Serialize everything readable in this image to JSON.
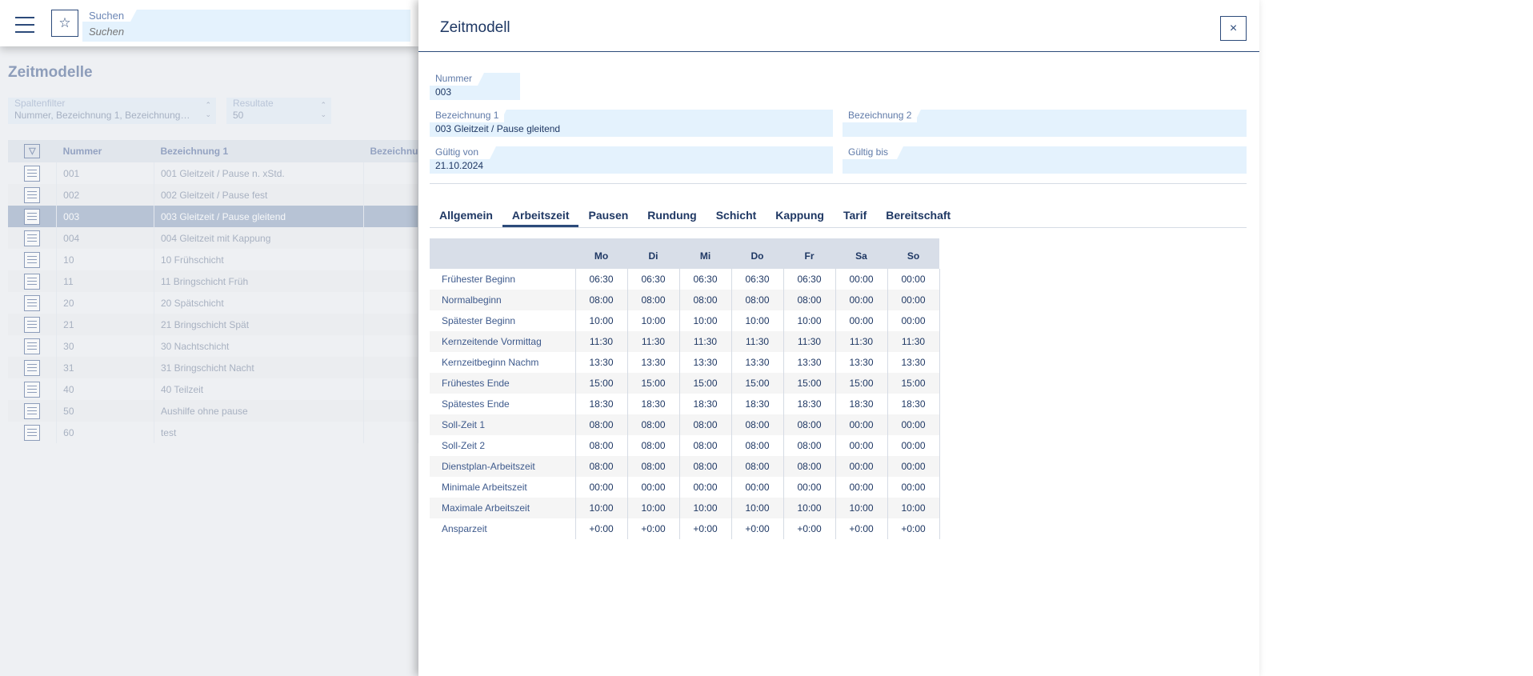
{
  "topbar": {
    "search_label": "Suchen",
    "search_placeholder": "Suchen"
  },
  "list": {
    "title": "Zeitmodelle",
    "column_filter": {
      "label": "Spaltenfilter",
      "value": "Nummer, Bezeichnung 1, Bezeichnung…"
    },
    "results": {
      "label": "Resultate",
      "value": "50"
    },
    "headers": [
      "Nummer",
      "Bezeichnung 1",
      "Bezeichnu"
    ],
    "rows": [
      {
        "nr": "001",
        "bez": "001 Gleitzeit / Pause n. xStd."
      },
      {
        "nr": "002",
        "bez": "002 Gleitzeit / Pause fest"
      },
      {
        "nr": "003",
        "bez": "003 Gleitzeit / Pause gleitend"
      },
      {
        "nr": "004",
        "bez": "004 Gleitzeit mit Kappung"
      },
      {
        "nr": "10",
        "bez": "10 Frühschicht"
      },
      {
        "nr": "11",
        "bez": "11 Bringschicht Früh"
      },
      {
        "nr": "20",
        "bez": "20 Spätschicht"
      },
      {
        "nr": "21",
        "bez": "21 Bringschicht Spät"
      },
      {
        "nr": "30",
        "bez": "30 Nachtschicht"
      },
      {
        "nr": "31",
        "bez": "31 Bringschicht Nacht"
      },
      {
        "nr": "40",
        "bez": "40 Teilzeit"
      },
      {
        "nr": "50",
        "bez": "Aushilfe ohne pause"
      },
      {
        "nr": "60",
        "bez": "test"
      }
    ]
  },
  "panel": {
    "title": "Zeitmodell",
    "close": "×",
    "fields": {
      "nummer": {
        "label": "Nummer",
        "value": "003"
      },
      "bez1": {
        "label": "Bezeichnung 1",
        "value": "003 Gleitzeit / Pause gleitend"
      },
      "bez2": {
        "label": "Bezeichnung 2",
        "value": ""
      },
      "von": {
        "label": "Gültig von",
        "value": "21.10.2024"
      },
      "bis": {
        "label": "Gültig bis",
        "value": ""
      }
    },
    "tabs": [
      "Allgemein",
      "Arbeitszeit",
      "Pausen",
      "Rundung",
      "Schicht",
      "Kappung",
      "Tarif",
      "Bereitschaft"
    ],
    "active_tab": "Arbeitszeit",
    "days": [
      "Mo",
      "Di",
      "Mi",
      "Do",
      "Fr",
      "Sa",
      "So"
    ],
    "rows": [
      {
        "label": "Frühester Beginn",
        "values": [
          "06:30",
          "06:30",
          "06:30",
          "06:30",
          "06:30",
          "00:00",
          "00:00"
        ]
      },
      {
        "label": "Normalbeginn",
        "values": [
          "08:00",
          "08:00",
          "08:00",
          "08:00",
          "08:00",
          "00:00",
          "00:00"
        ]
      },
      {
        "label": "Spätester Beginn",
        "values": [
          "10:00",
          "10:00",
          "10:00",
          "10:00",
          "10:00",
          "00:00",
          "00:00"
        ]
      },
      {
        "label": "Kernzeitende Vormittag",
        "values": [
          "11:30",
          "11:30",
          "11:30",
          "11:30",
          "11:30",
          "11:30",
          "11:30"
        ]
      },
      {
        "label": "Kernzeitbeginn Nachm",
        "values": [
          "13:30",
          "13:30",
          "13:30",
          "13:30",
          "13:30",
          "13:30",
          "13:30"
        ]
      },
      {
        "label": "Frühestes Ende",
        "values": [
          "15:00",
          "15:00",
          "15:00",
          "15:00",
          "15:00",
          "15:00",
          "15:00"
        ]
      },
      {
        "label": "Spätestes Ende",
        "values": [
          "18:30",
          "18:30",
          "18:30",
          "18:30",
          "18:30",
          "18:30",
          "18:30"
        ]
      },
      {
        "label": "Soll-Zeit 1",
        "values": [
          "08:00",
          "08:00",
          "08:00",
          "08:00",
          "08:00",
          "00:00",
          "00:00"
        ]
      },
      {
        "label": "Soll-Zeit 2",
        "values": [
          "08:00",
          "08:00",
          "08:00",
          "08:00",
          "08:00",
          "00:00",
          "00:00"
        ]
      },
      {
        "label": "Dienstplan-Arbeitszeit",
        "values": [
          "08:00",
          "08:00",
          "08:00",
          "08:00",
          "08:00",
          "00:00",
          "00:00"
        ]
      },
      {
        "label": "Minimale Arbeitszeit",
        "values": [
          "00:00",
          "00:00",
          "00:00",
          "00:00",
          "00:00",
          "00:00",
          "00:00"
        ]
      },
      {
        "label": "Maximale Arbeitszeit",
        "values": [
          "10:00",
          "10:00",
          "10:00",
          "10:00",
          "10:00",
          "10:00",
          "10:00"
        ]
      },
      {
        "label": "Ansparzeit",
        "values": [
          "+0:00",
          "+0:00",
          "+0:00",
          "+0:00",
          "+0:00",
          "+0:00",
          "+0:00"
        ]
      }
    ]
  }
}
